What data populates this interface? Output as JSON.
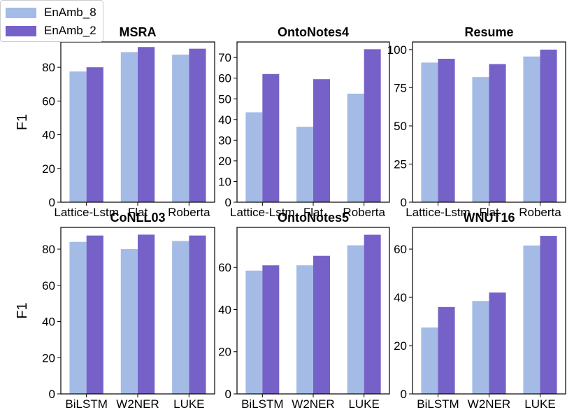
{
  "colors": {
    "series1": "#a4bbe6",
    "series2": "#7661c8"
  },
  "legend": {
    "items": [
      "EnAmb_8",
      "EnAmb_2"
    ]
  },
  "chart_data": [
    {
      "type": "bar",
      "title": "MSRA",
      "categories": [
        "Lattice-Lstm",
        "Flat",
        "Roberta"
      ],
      "series": [
        {
          "name": "EnAmb_8",
          "values": [
            77.5,
            89,
            87.5
          ]
        },
        {
          "name": "EnAmb_2",
          "values": [
            80,
            92,
            91
          ]
        }
      ],
      "ylabel": "F1",
      "ylim": [
        0,
        95
      ],
      "yticks": [
        0,
        20,
        40,
        60,
        80
      ]
    },
    {
      "type": "bar",
      "title": "OntoNotes4",
      "categories": [
        "Lattice-Lstm",
        "Flat",
        "Roberta"
      ],
      "series": [
        {
          "name": "EnAmb_8",
          "values": [
            43.5,
            36.5,
            52.5
          ]
        },
        {
          "name": "EnAmb_2",
          "values": [
            62,
            59.5,
            74
          ]
        }
      ],
      "ylabel": "",
      "ylim": [
        0,
        77.5
      ],
      "yticks": [
        0,
        10,
        20,
        30,
        40,
        50,
        60,
        70
      ]
    },
    {
      "type": "bar",
      "title": "Resume",
      "categories": [
        "Lattice-Lstm",
        "Flat",
        "Roberta"
      ],
      "series": [
        {
          "name": "EnAmb_8",
          "values": [
            91.5,
            82,
            95.5
          ]
        },
        {
          "name": "EnAmb_2",
          "values": [
            94,
            90.5,
            100
          ]
        }
      ],
      "ylabel": "",
      "ylim": [
        0,
        105
      ],
      "yticks": [
        0,
        25,
        50,
        75,
        100
      ]
    },
    {
      "type": "bar",
      "title": "CoNLL03",
      "categories": [
        "BiLSTM",
        "W2NER",
        "LUKE"
      ],
      "series": [
        {
          "name": "EnAmb_8",
          "values": [
            84,
            80,
            84.5
          ]
        },
        {
          "name": "EnAmb_2",
          "values": [
            87.5,
            88,
            87.5
          ]
        }
      ],
      "ylabel": "F1",
      "ylim": [
        0,
        92
      ],
      "yticks": [
        0,
        20,
        40,
        60,
        80
      ]
    },
    {
      "type": "bar",
      "title": "OntoNotes5",
      "categories": [
        "BiLSTM",
        "W2NER",
        "LUKE"
      ],
      "series": [
        {
          "name": "EnAmb_8",
          "values": [
            58.5,
            61,
            70.5
          ]
        },
        {
          "name": "EnAmb_2",
          "values": [
            61,
            65.5,
            75.5
          ]
        }
      ],
      "ylabel": "",
      "ylim": [
        0,
        79
      ],
      "yticks": [
        0,
        20,
        40,
        60
      ]
    },
    {
      "type": "bar",
      "title": "WNUT16",
      "categories": [
        "BiLSTM",
        "W2NER",
        "LUKE"
      ],
      "series": [
        {
          "name": "EnAmb_8",
          "values": [
            27.5,
            38.5,
            61.5
          ]
        },
        {
          "name": "EnAmb_2",
          "values": [
            36,
            42,
            65.5
          ]
        }
      ],
      "ylabel": "",
      "ylim": [
        0,
        69
      ],
      "yticks": [
        0,
        20,
        40,
        60
      ]
    }
  ]
}
